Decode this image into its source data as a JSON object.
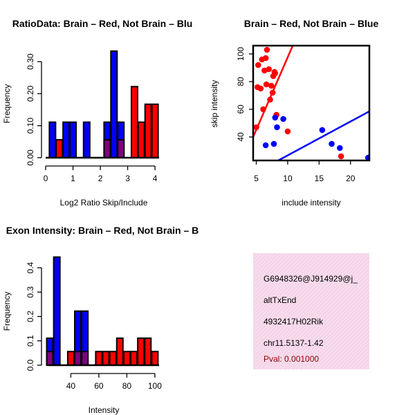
{
  "colors": {
    "brain": "#ff0000",
    "not_brain": "#0000ff",
    "overlap": "#7f007f",
    "info_box": "#f5d7ea",
    "pval": "#8b0000"
  },
  "chart_data": [
    {
      "type": "bar",
      "title": "RatioData: Brain – Red, Not Brain – Blu",
      "xlabel": "Log2 Ratio Skip/Include",
      "ylabel": "Frequency",
      "xlim": [
        0,
        4.2
      ],
      "ylim": [
        0,
        0.35
      ],
      "x_ticks": [
        0,
        1,
        2,
        3,
        4
      ],
      "y_ticks": [
        0.0,
        0.1,
        0.2,
        0.3
      ],
      "y_tick_labels": [
        "0.00",
        "0.10",
        "0.20",
        "0.30"
      ],
      "series": [
        {
          "name": "Not Brain",
          "color": "#0000ff",
          "bars": [
            {
              "x": 0.25,
              "v": 0.111
            },
            {
              "x": 0.75,
              "v": 0.111
            },
            {
              "x": 1.0,
              "v": 0.111
            },
            {
              "x": 1.5,
              "v": 0.111
            },
            {
              "x": 2.25,
              "v": 0.111
            },
            {
              "x": 2.5,
              "v": 0.333
            },
            {
              "x": 2.75,
              "v": 0.111
            }
          ]
        },
        {
          "name": "Brain",
          "color": "#ff0000",
          "bars": [
            {
              "x": 0.5,
              "v": 0.056
            },
            {
              "x": 2.25,
              "v": 0.056
            },
            {
              "x": 2.75,
              "v": 0.056
            },
            {
              "x": 3.25,
              "v": 0.222
            },
            {
              "x": 3.5,
              "v": 0.111
            },
            {
              "x": 3.75,
              "v": 0.167
            },
            {
              "x": 4.0,
              "v": 0.167
            }
          ]
        }
      ]
    },
    {
      "type": "scatter",
      "title": "Brain – Red, Not Brain – Blue",
      "xlabel": "include intensity",
      "ylabel": "skip intensity",
      "xlim": [
        4.5,
        23
      ],
      "ylim": [
        23,
        106
      ],
      "x_ticks": [
        5,
        10,
        15,
        20
      ],
      "y_ticks": [
        40,
        60,
        80,
        100
      ],
      "series": [
        {
          "name": "Brain",
          "color": "#ff0000",
          "points": [
            [
              5.0,
              47
            ],
            [
              5.2,
              76
            ],
            [
              5.3,
              92
            ],
            [
              5.7,
              75
            ],
            [
              5.9,
              96
            ],
            [
              6.1,
              60
            ],
            [
              6.3,
              88
            ],
            [
              6.5,
              97
            ],
            [
              6.6,
              78
            ],
            [
              6.7,
              103
            ],
            [
              7.0,
              89
            ],
            [
              7.2,
              67
            ],
            [
              7.4,
              77
            ],
            [
              7.6,
              72
            ],
            [
              7.7,
              84
            ],
            [
              7.9,
              87
            ],
            [
              8.0,
              86
            ],
            [
              8.2,
              56
            ],
            [
              10.0,
              44
            ],
            [
              18.5,
              26
            ]
          ],
          "fit": [
            [
              4.5,
              40
            ],
            [
              10.8,
              106
            ]
          ]
        },
        {
          "name": "Not Brain",
          "color": "#0000ff",
          "points": [
            [
              6.5,
              34
            ],
            [
              7.8,
              35
            ],
            [
              8.0,
              54
            ],
            [
              8.3,
              47
            ],
            [
              9.3,
              53
            ],
            [
              15.5,
              45
            ],
            [
              17.0,
              35
            ],
            [
              18.3,
              32
            ],
            [
              22.8,
              25
            ]
          ],
          "fit": [
            [
              8.5,
              23
            ],
            [
              23,
              58.5
            ]
          ]
        }
      ]
    },
    {
      "type": "bar",
      "title": "Exon Intensity: Brain – Red, Not Brain – B",
      "xlabel": "Intensity",
      "ylabel": "Frequency",
      "xlim": [
        24,
        104
      ],
      "ylim": [
        0,
        0.46
      ],
      "x_ticks": [
        40,
        60,
        80,
        100
      ],
      "y_ticks": [
        0.0,
        0.1,
        0.2,
        0.3,
        0.4
      ],
      "y_tick_labels": [
        "0.0",
        "0.1",
        "0.2",
        "0.3",
        "0.4"
      ],
      "series": [
        {
          "name": "Not Brain",
          "color": "#0000ff",
          "bars": [
            {
              "x": 25,
              "v": 0.111
            },
            {
              "x": 30,
              "v": 0.444
            },
            {
              "x": 45,
              "v": 0.222
            },
            {
              "x": 50,
              "v": 0.222
            }
          ]
        },
        {
          "name": "Brain",
          "color": "#ff0000",
          "bars": [
            {
              "x": 25,
              "v": 0.056
            },
            {
              "x": 40,
              "v": 0.056
            },
            {
              "x": 45,
              "v": 0.056
            },
            {
              "x": 50,
              "v": 0.056
            },
            {
              "x": 60,
              "v": 0.056
            },
            {
              "x": 65,
              "v": 0.056
            },
            {
              "x": 70,
              "v": 0.056
            },
            {
              "x": 75,
              "v": 0.111
            },
            {
              "x": 80,
              "v": 0.056
            },
            {
              "x": 85,
              "v": 0.056
            },
            {
              "x": 90,
              "v": 0.111
            },
            {
              "x": 95,
              "v": 0.111
            },
            {
              "x": 100,
              "v": 0.056
            }
          ]
        }
      ]
    }
  ],
  "info": {
    "probe": "G6948326@J914929@j_",
    "event_type": "altTxEnd",
    "gene": "4932417H02Rik",
    "location": "chr11.5137-1.42",
    "pval": "Pval: 0.001000"
  }
}
